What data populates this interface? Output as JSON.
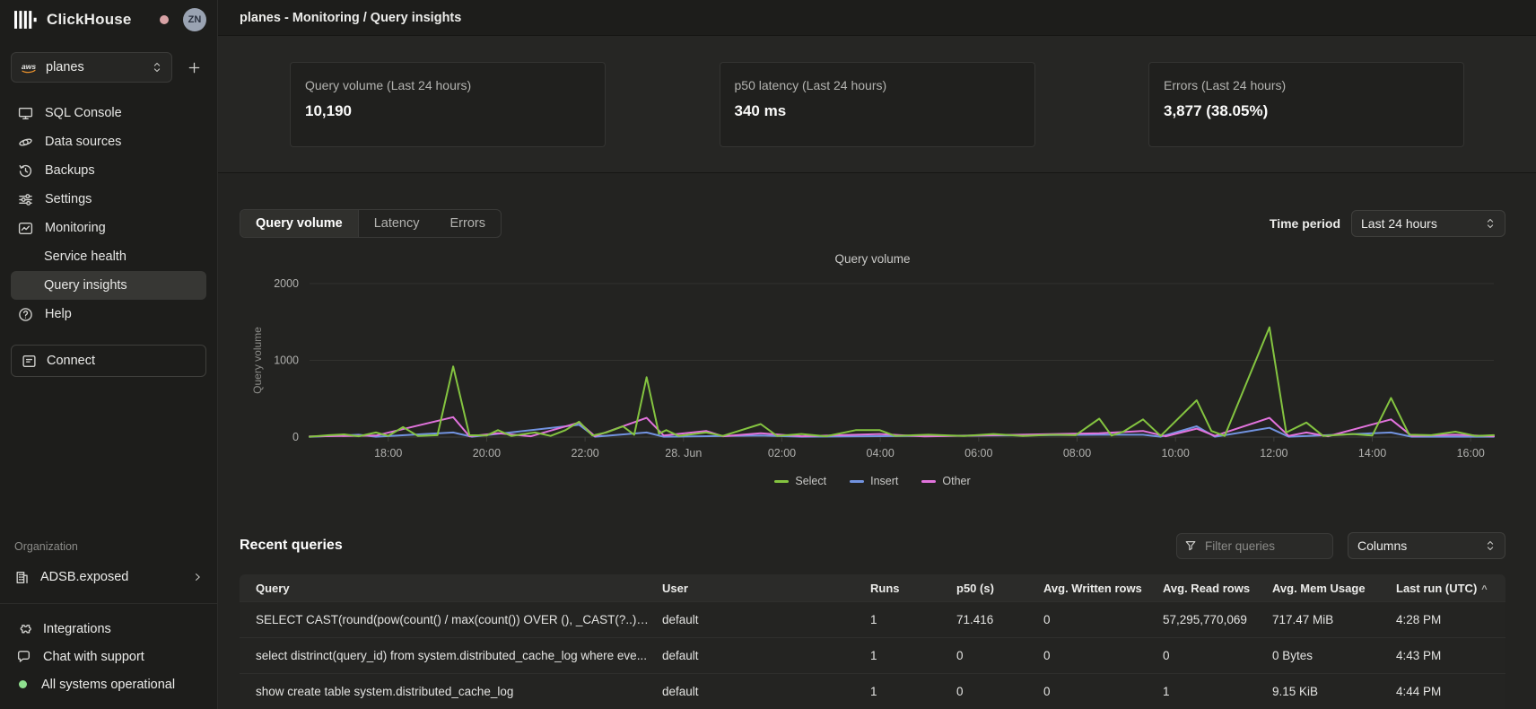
{
  "app": {
    "brand": "ClickHouse",
    "avatar_initials": "ZN"
  },
  "sidebar": {
    "selector": {
      "provider": "aws",
      "value": "planes"
    },
    "items": [
      {
        "icon": "sql-console-icon",
        "label": "SQL Console"
      },
      {
        "icon": "data-sources-icon",
        "label": "Data sources"
      },
      {
        "icon": "backups-icon",
        "label": "Backups"
      },
      {
        "icon": "settings-icon",
        "label": "Settings"
      },
      {
        "icon": "monitoring-icon",
        "label": "Monitoring"
      }
    ],
    "monitoring_sub": [
      {
        "label": "Service health",
        "active": false
      },
      {
        "label": "Query insights",
        "active": true
      }
    ],
    "help_label": "Help",
    "connect_label": "Connect",
    "organization_label": "Organization",
    "organization_name": "ADSB.exposed",
    "footer": [
      {
        "icon": "integrations-icon",
        "label": "Integrations"
      },
      {
        "icon": "chat-icon",
        "label": "Chat with support"
      },
      {
        "icon": "status-ok-dot",
        "label": "All systems operational"
      }
    ]
  },
  "header": {
    "title": "planes - Monitoring / Query insights"
  },
  "stats_cards": [
    {
      "label": "Query volume (Last 24 hours)",
      "value": "10,190"
    },
    {
      "label": "p50 latency (Last 24 hours)",
      "value": "340 ms"
    },
    {
      "label": "Errors (Last 24 hours)",
      "value": "3,877 (38.05%)"
    }
  ],
  "tabs": [
    {
      "label": "Query volume",
      "active": true
    },
    {
      "label": "Latency",
      "active": false
    },
    {
      "label": "Errors",
      "active": false
    }
  ],
  "time_period": {
    "label": "Time period",
    "value": "Last 24 hours"
  },
  "chart_data": {
    "type": "line",
    "title": "Query volume",
    "ylabel": "Query volume",
    "ylim": [
      0,
      2000
    ],
    "yticks": [
      0,
      1000,
      2000
    ],
    "grid": true,
    "legend_position": "bottom",
    "x_span_hours": 24.07,
    "xticks": [
      {
        "label": "18:00",
        "t": 1.6
      },
      {
        "label": "20:00",
        "t": 3.6
      },
      {
        "label": "22:00",
        "t": 5.6
      },
      {
        "label": "28. Jun",
        "t": 7.6
      },
      {
        "label": "02:00",
        "t": 9.6
      },
      {
        "label": "04:00",
        "t": 11.6
      },
      {
        "label": "06:00",
        "t": 13.6
      },
      {
        "label": "08:00",
        "t": 15.6
      },
      {
        "label": "10:00",
        "t": 17.6
      },
      {
        "label": "12:00",
        "t": 19.6
      },
      {
        "label": "14:00",
        "t": 21.6
      },
      {
        "label": "16:00",
        "t": 23.6
      }
    ],
    "series": [
      {
        "name": "Insert",
        "color": "#7293e0",
        "points": [
          [
            0,
            4
          ],
          [
            1.0,
            30
          ],
          [
            1.35,
            5
          ],
          [
            2.92,
            60
          ],
          [
            3.3,
            5
          ],
          [
            5.48,
            160
          ],
          [
            5.8,
            5
          ],
          [
            6.85,
            60
          ],
          [
            7.2,
            5
          ],
          [
            9.17,
            20
          ],
          [
            10.0,
            5
          ],
          [
            16.05,
            30
          ],
          [
            16.94,
            30
          ],
          [
            17.3,
            5
          ],
          [
            18.03,
            140
          ],
          [
            18.4,
            5
          ],
          [
            19.51,
            120
          ],
          [
            19.9,
            5
          ],
          [
            21.98,
            60
          ],
          [
            22.4,
            5
          ],
          [
            24.07,
            5
          ]
        ]
      },
      {
        "name": "Other",
        "color": "#e273dd",
        "points": [
          [
            0,
            8
          ],
          [
            1.35,
            20
          ],
          [
            2.92,
            260
          ],
          [
            3.25,
            10
          ],
          [
            3.83,
            50
          ],
          [
            4.5,
            10
          ],
          [
            5.48,
            190
          ],
          [
            5.8,
            10
          ],
          [
            6.85,
            250
          ],
          [
            7.2,
            20
          ],
          [
            8.06,
            80
          ],
          [
            8.4,
            10
          ],
          [
            9.17,
            50
          ],
          [
            10.0,
            10
          ],
          [
            11.59,
            40
          ],
          [
            12.5,
            8
          ],
          [
            16.05,
            50
          ],
          [
            16.94,
            80
          ],
          [
            17.4,
            10
          ],
          [
            18.03,
            110
          ],
          [
            18.4,
            15
          ],
          [
            19.51,
            250
          ],
          [
            19.9,
            15
          ],
          [
            20.26,
            60
          ],
          [
            20.7,
            10
          ],
          [
            21.98,
            230
          ],
          [
            22.4,
            15
          ],
          [
            23.29,
            30
          ],
          [
            24.07,
            10
          ]
        ]
      },
      {
        "name": "Select",
        "color": "#84c440",
        "points": [
          [
            0,
            5
          ],
          [
            0.4,
            25
          ],
          [
            0.7,
            35
          ],
          [
            1.0,
            10
          ],
          [
            1.35,
            60
          ],
          [
            1.6,
            15
          ],
          [
            1.9,
            130
          ],
          [
            2.2,
            15
          ],
          [
            2.6,
            25
          ],
          [
            2.92,
            920
          ],
          [
            3.25,
            25
          ],
          [
            3.6,
            20
          ],
          [
            3.83,
            90
          ],
          [
            4.1,
            15
          ],
          [
            4.58,
            60
          ],
          [
            4.9,
            15
          ],
          [
            5.2,
            90
          ],
          [
            5.48,
            200
          ],
          [
            5.75,
            20
          ],
          [
            6.03,
            60
          ],
          [
            6.37,
            140
          ],
          [
            6.6,
            30
          ],
          [
            6.85,
            780
          ],
          [
            7.1,
            45
          ],
          [
            7.25,
            90
          ],
          [
            7.5,
            15
          ],
          [
            8.06,
            60
          ],
          [
            8.4,
            15
          ],
          [
            9.17,
            170
          ],
          [
            9.5,
            15
          ],
          [
            10.0,
            40
          ],
          [
            10.5,
            10
          ],
          [
            11.1,
            90
          ],
          [
            11.59,
            90
          ],
          [
            11.9,
            15
          ],
          [
            12.58,
            30
          ],
          [
            13.3,
            15
          ],
          [
            13.9,
            40
          ],
          [
            14.5,
            15
          ],
          [
            15.1,
            30
          ],
          [
            15.57,
            25
          ],
          [
            16.05,
            240
          ],
          [
            16.3,
            20
          ],
          [
            16.54,
            70
          ],
          [
            16.94,
            230
          ],
          [
            17.3,
            15
          ],
          [
            18.03,
            480
          ],
          [
            18.33,
            80
          ],
          [
            18.6,
            15
          ],
          [
            19.51,
            1430
          ],
          [
            19.85,
            60
          ],
          [
            20.26,
            190
          ],
          [
            20.6,
            15
          ],
          [
            21.2,
            40
          ],
          [
            21.6,
            20
          ],
          [
            21.98,
            510
          ],
          [
            22.35,
            30
          ],
          [
            22.8,
            25
          ],
          [
            23.29,
            70
          ],
          [
            23.7,
            15
          ],
          [
            24.07,
            25
          ]
        ]
      }
    ],
    "legend_order": [
      "Select",
      "Insert",
      "Other"
    ]
  },
  "recent_queries": {
    "title": "Recent queries",
    "filter_placeholder": "Filter queries",
    "columns_button": "Columns",
    "table": {
      "headers": [
        "Query",
        "User",
        "Runs",
        "p50 (s)",
        "Avg. Written rows",
        "Avg. Read rows",
        "Avg. Mem Usage",
        "Last run (UTC)"
      ],
      "sort_column": "Last run (UTC)",
      "sort_indicator": "^",
      "rows": [
        [
          "SELECT CAST(round(pow(count() / max(count()) OVER (), _CAST(?..)) * ...",
          "default",
          "1",
          "71.416",
          "0",
          "57,295,770,069",
          "717.47 MiB",
          "4:28 PM"
        ],
        [
          "select distrinct(query_id) from system.distributed_cache_log where eve...",
          "default",
          "1",
          "0",
          "0",
          "0",
          "0 Bytes",
          "4:43 PM"
        ],
        [
          "show create table system.distributed_cache_log",
          "default",
          "1",
          "0",
          "0",
          "1",
          "9.15 KiB",
          "4:44 PM"
        ]
      ]
    }
  }
}
